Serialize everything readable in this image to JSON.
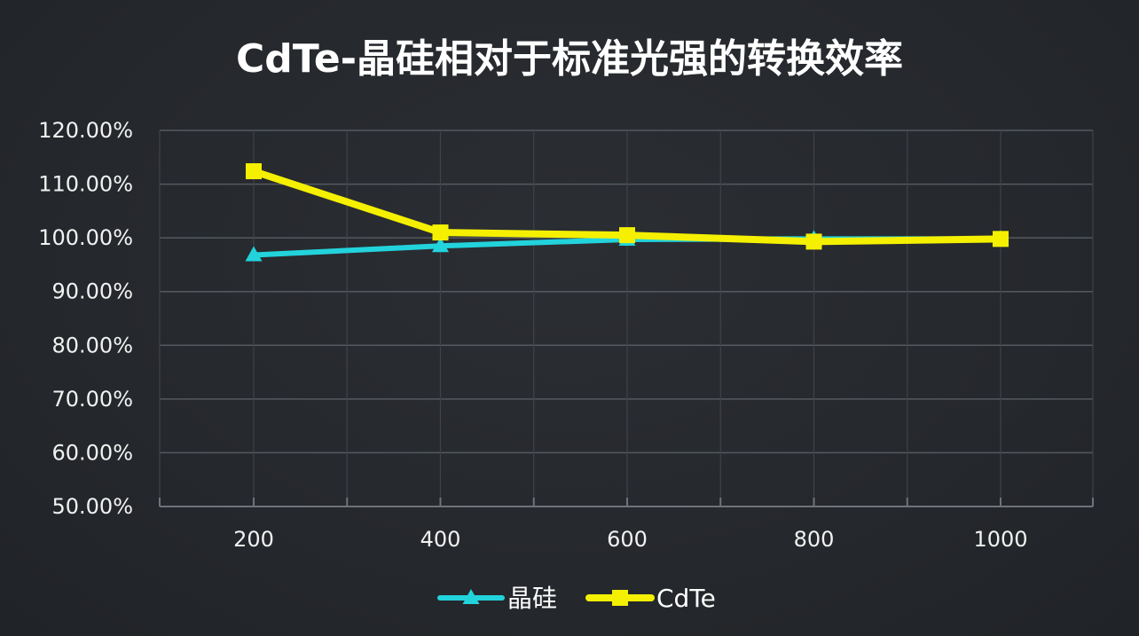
{
  "chart_data": {
    "type": "line",
    "title": "CdTe-晶硅相对于标准光强的转换效率",
    "xlabel": "",
    "ylabel": "",
    "categories": [
      "200",
      "400",
      "600",
      "800",
      "1000"
    ],
    "ylim": [
      0.5,
      1.2
    ],
    "y_ticks": [
      "50.00%",
      "60.00%",
      "70.00%",
      "80.00%",
      "90.00%",
      "100.00%",
      "110.00%",
      "120.00%"
    ],
    "y_tick_values": [
      0.5,
      0.6,
      0.7,
      0.8,
      0.9,
      1.0,
      1.1,
      1.2
    ],
    "grid": true,
    "legend_position": "bottom",
    "series": [
      {
        "name": "晶硅",
        "values": [
          0.968,
          0.985,
          0.997,
          0.998,
          0.998
        ],
        "color": "#22d3dc",
        "marker": "triangle"
      },
      {
        "name": "CdTe",
        "values": [
          1.124,
          1.01,
          1.005,
          0.993,
          0.998
        ],
        "color": "#f4f000",
        "marker": "square"
      }
    ]
  }
}
